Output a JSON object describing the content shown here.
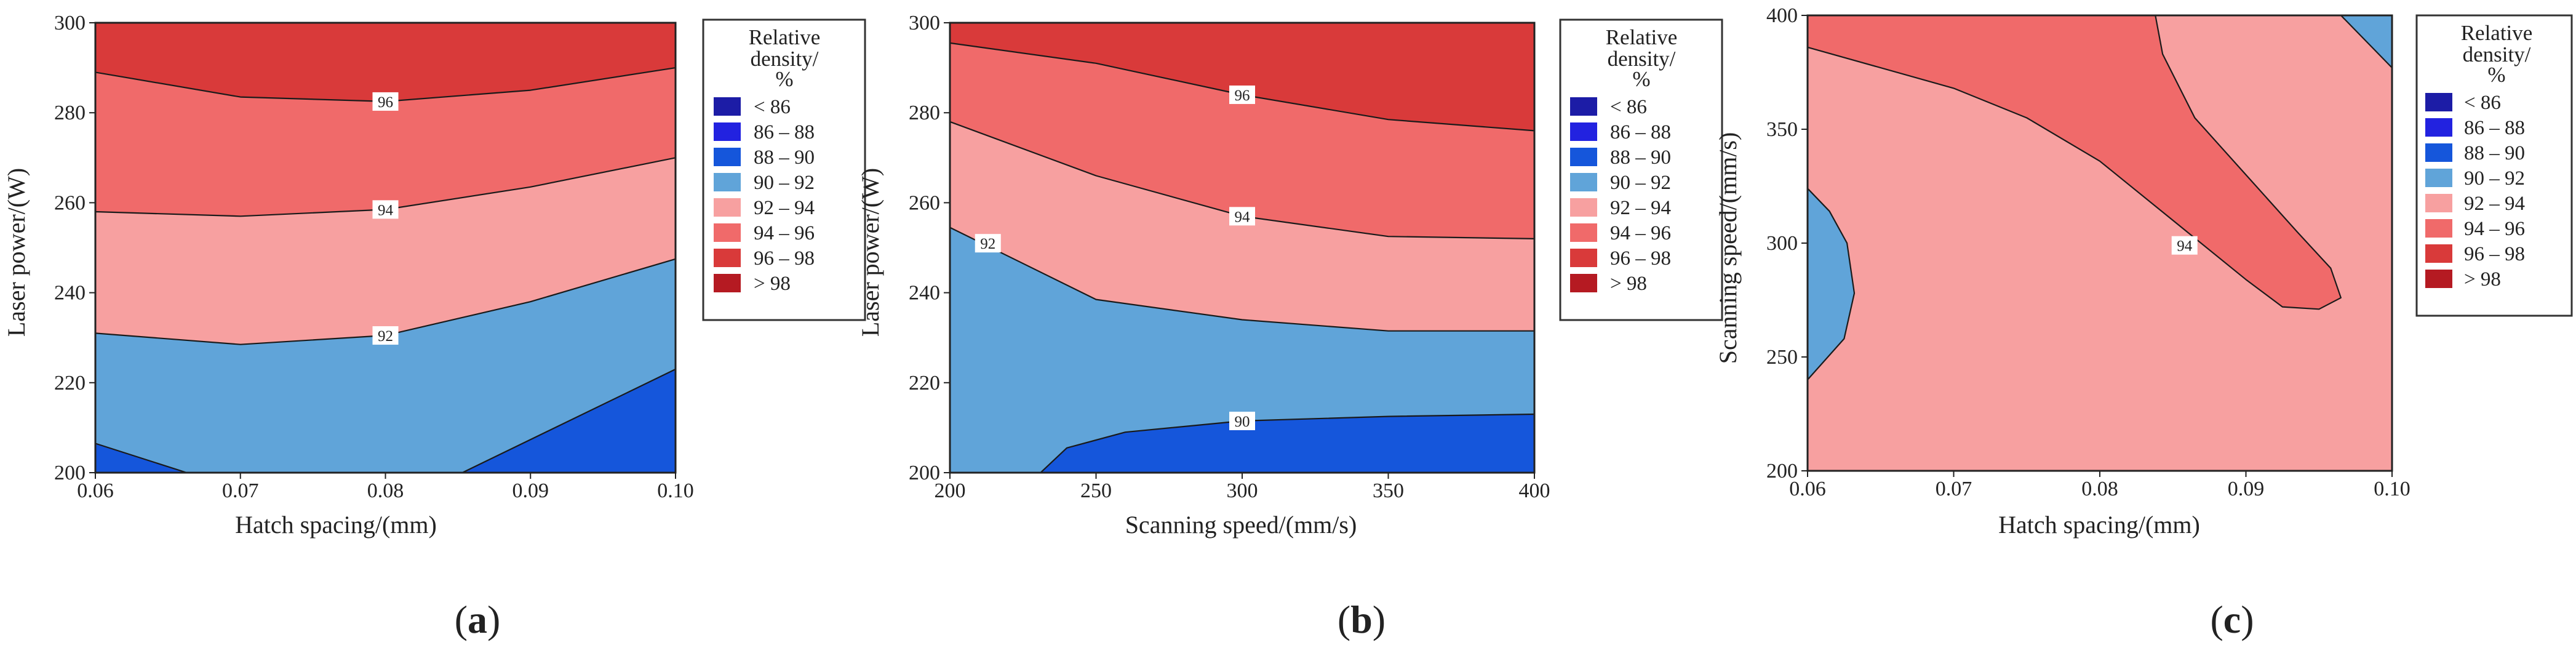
{
  "colors": {
    "lt86": "#1c1ca6",
    "86_88": "#2222e0",
    "88_90": "#1556db",
    "90_92": "#60a4d9",
    "92_94": "#f7a0a0",
    "94_96": "#f06a6a",
    "96_98": "#d93a3a",
    "gt98": "#b51a22",
    "outline": "#1a1a1a"
  },
  "legend": {
    "title": [
      "Relative",
      "density/",
      "%"
    ],
    "entries": [
      {
        "label": "< 86",
        "color_key": "lt86"
      },
      {
        "label": "86 – 88",
        "color_key": "86_88"
      },
      {
        "label": "88 – 90",
        "color_key": "88_90"
      },
      {
        "label": "90 – 92",
        "color_key": "90_92"
      },
      {
        "label": "92 – 94",
        "color_key": "92_94"
      },
      {
        "label": "94 – 96",
        "color_key": "94_96"
      },
      {
        "label": "96 – 98",
        "color_key": "96_98"
      },
      {
        "label": "> 98",
        "color_key": "gt98"
      }
    ]
  },
  "chart_data": [
    {
      "type": "contour",
      "panel": "a",
      "caption": "(a)",
      "xlabel": "Hatch spacing/(mm)",
      "ylabel": "Laser power/(W)",
      "xlim": [
        0.06,
        0.1
      ],
      "ylim": [
        200,
        300
      ],
      "xticks": [
        "0.06",
        "0.07",
        "0.08",
        "0.09",
        "0.10"
      ],
      "yticks": [
        "200",
        "220",
        "240",
        "260",
        "280",
        "300"
      ],
      "background": "96_98",
      "regions": [
        {
          "level": "94_96",
          "points": [
            [
              0.06,
              200
            ],
            [
              0.06,
              289
            ],
            [
              0.07,
              283.5
            ],
            [
              0.08,
              282.5
            ],
            [
              0.09,
              285
            ],
            [
              0.1,
              290
            ],
            [
              0.1,
              200
            ]
          ]
        },
        {
          "level": "92_94",
          "points": [
            [
              0.06,
              200
            ],
            [
              0.06,
              258
            ],
            [
              0.07,
              257
            ],
            [
              0.08,
              258.5
            ],
            [
              0.09,
              263.5
            ],
            [
              0.1,
              270
            ],
            [
              0.1,
              200
            ]
          ]
        },
        {
          "level": "90_92",
          "points": [
            [
              0.06,
              200
            ],
            [
              0.06,
              231
            ],
            [
              0.07,
              228.5
            ],
            [
              0.08,
              230.5
            ],
            [
              0.09,
              238
            ],
            [
              0.1,
              247.5
            ],
            [
              0.1,
              200
            ]
          ]
        },
        {
          "level": "88_90",
          "points": [
            [
              0.06,
              206.5
            ],
            [
              0.0663,
              200
            ],
            [
              0.06,
              200
            ]
          ]
        },
        {
          "level": "88_90",
          "points": [
            [
              0.0853,
              200
            ],
            [
              0.1,
              223
            ],
            [
              0.1,
              200
            ]
          ]
        }
      ],
      "contour_labels": [
        {
          "text": "96",
          "x": 0.08,
          "y": 282.5
        },
        {
          "text": "94",
          "x": 0.08,
          "y": 258.5
        },
        {
          "text": "92",
          "x": 0.08,
          "y": 230.5
        }
      ]
    },
    {
      "type": "contour",
      "panel": "b",
      "caption": "(b)",
      "xlabel": "Scanning speed/(mm/s)",
      "ylabel": "Laser power/(W)",
      "xlim": [
        200,
        400
      ],
      "ylim": [
        200,
        300
      ],
      "xticks": [
        "200",
        "250",
        "300",
        "350",
        "400"
      ],
      "yticks": [
        "200",
        "220",
        "240",
        "260",
        "280",
        "300"
      ],
      "background": "96_98",
      "regions": [
        {
          "level": "94_96",
          "points": [
            [
              200,
              200
            ],
            [
              200,
              295.5
            ],
            [
              250,
              291
            ],
            [
              300,
              284
            ],
            [
              350,
              278.5
            ],
            [
              400,
              276
            ],
            [
              400,
              200
            ]
          ]
        },
        {
          "level": "92_94",
          "points": [
            [
              200,
              200
            ],
            [
              200,
              278
            ],
            [
              250,
              266
            ],
            [
              300,
              257
            ],
            [
              350,
              252.5
            ],
            [
              400,
              252
            ],
            [
              400,
              200
            ]
          ]
        },
        {
          "level": "90_92",
          "points": [
            [
              200,
              200
            ],
            [
              200,
              254.5
            ],
            [
              250,
              238.5
            ],
            [
              300,
              234
            ],
            [
              350,
              231.5
            ],
            [
              400,
              231.5
            ],
            [
              400,
              200
            ]
          ]
        },
        {
          "level": "88_90",
          "points": [
            [
              231,
              200
            ],
            [
              240,
              205.5
            ],
            [
              260,
              209
            ],
            [
              300,
              211.5
            ],
            [
              350,
              212.5
            ],
            [
              400,
              213
            ],
            [
              400,
              200
            ]
          ]
        }
      ],
      "contour_labels": [
        {
          "text": "96",
          "x": 300,
          "y": 284
        },
        {
          "text": "94",
          "x": 300,
          "y": 257
        },
        {
          "text": "92",
          "x": 213,
          "y": 251
        },
        {
          "text": "90",
          "x": 300,
          "y": 211.5
        }
      ]
    },
    {
      "type": "contour",
      "panel": "c",
      "caption": "(c)",
      "xlabel": "Hatch spacing/(mm)",
      "ylabel": "Scanning speed/(mm/s)",
      "xlim": [
        0.06,
        0.1
      ],
      "ylim": [
        200,
        400
      ],
      "xticks": [
        "0.06",
        "0.07",
        "0.08",
        "0.09",
        "0.10"
      ],
      "yticks": [
        "200",
        "250",
        "300",
        "350",
        "400"
      ],
      "background": "94_96",
      "regions": [
        {
          "level": "92_94",
          "points": [
            [
              0.06,
              200
            ],
            [
              0.06,
              386
            ],
            [
              0.07,
              368
            ],
            [
              0.075,
              355
            ],
            [
              0.08,
              336
            ],
            [
              0.085,
              310
            ],
            [
              0.09,
              284
            ],
            [
              0.0925,
              272
            ],
            [
              0.095,
              271
            ],
            [
              0.0965,
              276
            ],
            [
              0.0958,
              289
            ],
            [
              0.0935,
              305
            ],
            [
              0.09,
              330
            ],
            [
              0.0865,
              355
            ],
            [
              0.0843,
              383
            ],
            [
              0.0838,
              400
            ],
            [
              0.1,
              400
            ],
            [
              0.1,
              200
            ]
          ]
        },
        {
          "level": "90_92",
          "points": [
            [
              0.06,
              324
            ],
            [
              0.0615,
              314
            ],
            [
              0.0627,
              300
            ],
            [
              0.0632,
              278
            ],
            [
              0.0625,
              258
            ],
            [
              0.06,
              240
            ]
          ]
        },
        {
          "level": "90_92",
          "points": [
            [
              0.0965,
              400
            ],
            [
              0.1,
              377
            ],
            [
              0.1,
              400
            ]
          ]
        }
      ],
      "contour_labels": [
        {
          "text": "94",
          "x": 0.0858,
          "y": 299
        }
      ]
    }
  ]
}
